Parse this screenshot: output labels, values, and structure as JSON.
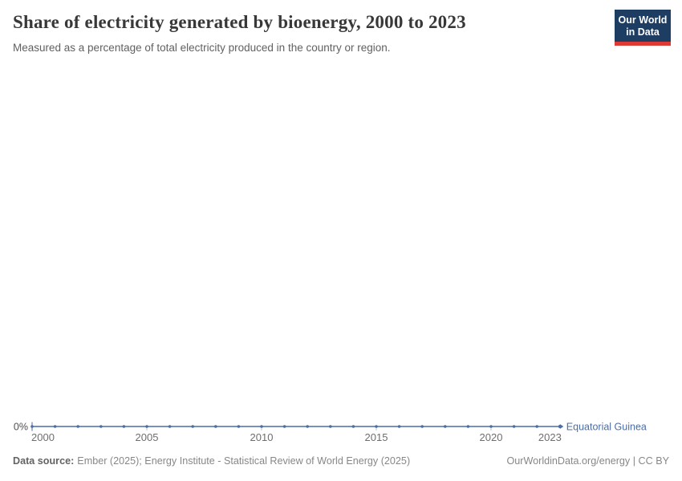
{
  "header": {
    "title": "Share of electricity generated by bioenergy, 2000 to 2023",
    "subtitle": "Measured as a percentage of total electricity produced in the country or region."
  },
  "logo": {
    "line1": "Our World",
    "line2": "in Data",
    "bg": "#1d3d63",
    "accent": "#dc3a32"
  },
  "chart_data": {
    "type": "line",
    "title": "Share of electricity generated by bioenergy, 2000 to 2023",
    "subtitle": "Measured as a percentage of total electricity produced in the country or region.",
    "x": [
      2000,
      2001,
      2002,
      2003,
      2004,
      2005,
      2006,
      2007,
      2008,
      2009,
      2010,
      2011,
      2012,
      2013,
      2014,
      2015,
      2016,
      2017,
      2018,
      2019,
      2020,
      2021,
      2022,
      2023
    ],
    "series": [
      {
        "name": "Equatorial Guinea",
        "color": "#4c6da5",
        "values": [
          0,
          0,
          0,
          0,
          0,
          0,
          0,
          0,
          0,
          0,
          0,
          0,
          0,
          0,
          0,
          0,
          0,
          0,
          0,
          0,
          0,
          0,
          0,
          0
        ]
      }
    ],
    "x_ticks": [
      2000,
      2005,
      2010,
      2015,
      2020,
      2023
    ],
    "y_ticks": [
      {
        "value": 0,
        "label": "0%"
      }
    ],
    "xlabel": "",
    "ylabel": "",
    "grid": false,
    "markers": true,
    "legend_position": "end-of-line",
    "axis_tick_color": "#b9c2cf",
    "axis_label_color": "#6e6e6e"
  },
  "footer": {
    "source_prefix": "Data source:",
    "source_text": "Ember (2025); Energy Institute - Statistical Review of World Energy (2025)",
    "rights": "OurWorldinData.org/energy | CC BY"
  }
}
